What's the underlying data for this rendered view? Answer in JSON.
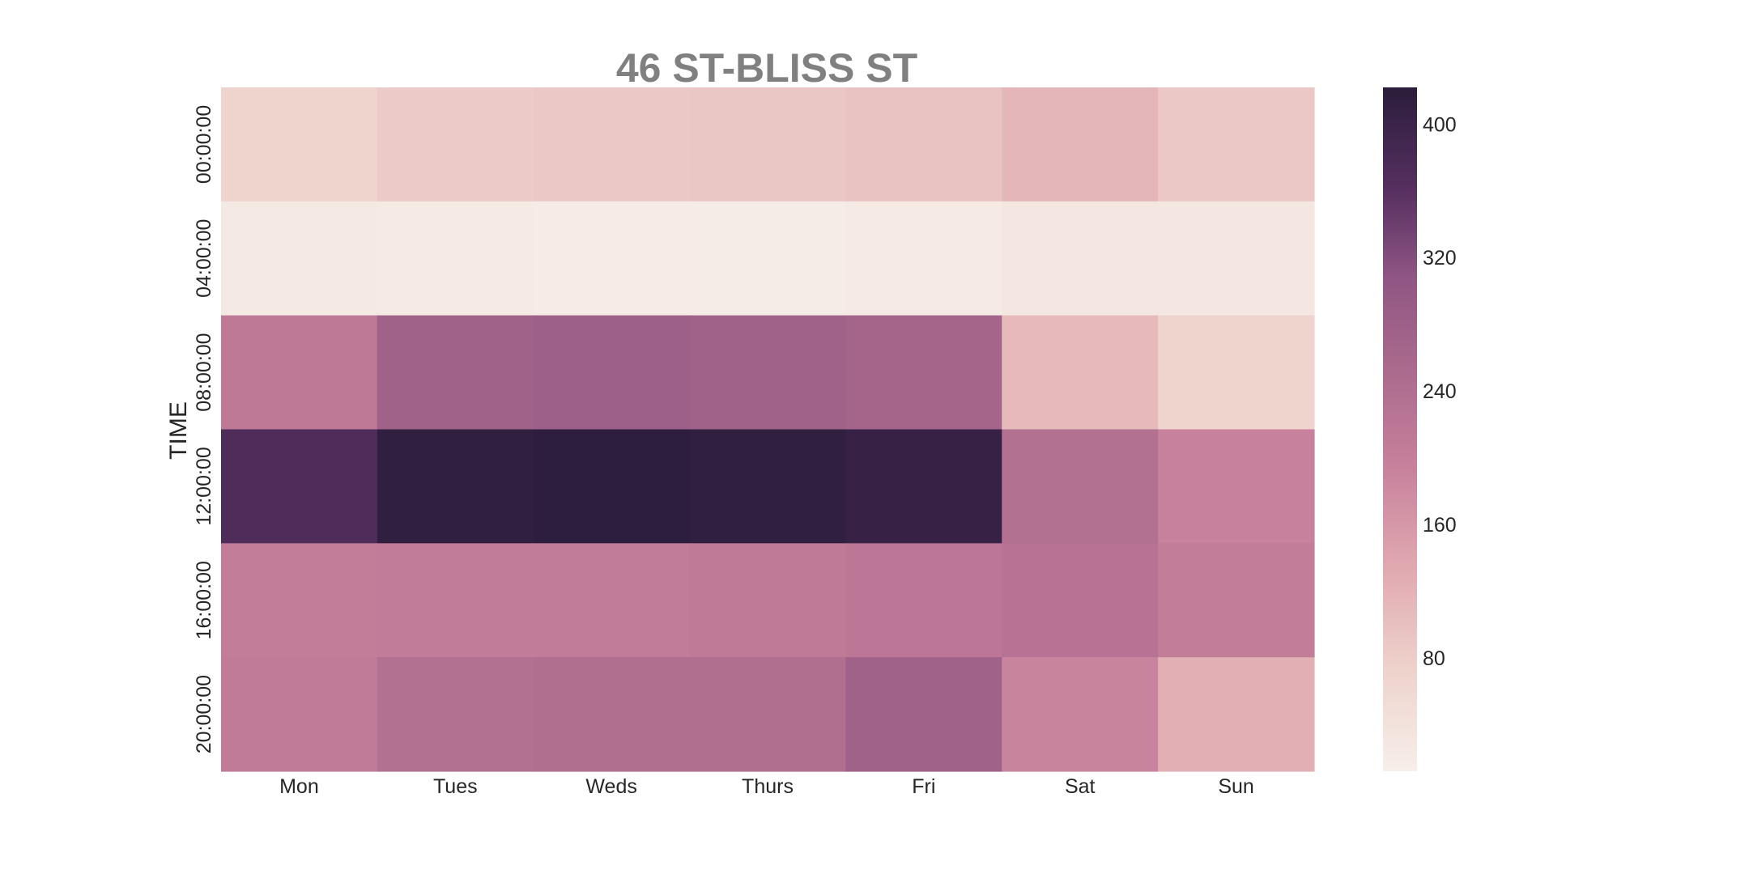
{
  "chart_data": {
    "type": "heatmap",
    "title": "46 ST-BLISS ST",
    "xlabel": "",
    "ylabel": "TIME",
    "x_categories": [
      "Mon",
      "Tues",
      "Weds",
      "Thurs",
      "Fri",
      "Sat",
      "Sun"
    ],
    "y_categories": [
      "00:00:00",
      "04:00:00",
      "08:00:00",
      "12:00:00",
      "16:00:00",
      "20:00:00"
    ],
    "values": [
      [
        70,
        85,
        88,
        90,
        95,
        115,
        88
      ],
      [
        25,
        22,
        20,
        18,
        22,
        30,
        32
      ],
      [
        215,
        275,
        280,
        275,
        265,
        110,
        70
      ],
      [
        370,
        415,
        418,
        415,
        405,
        235,
        195
      ],
      [
        205,
        208,
        208,
        212,
        220,
        230,
        205
      ],
      [
        210,
        235,
        240,
        240,
        275,
        190,
        125
      ]
    ],
    "colorbar": {
      "ticks": [
        80,
        160,
        240,
        320,
        400
      ],
      "range": [
        12,
        422
      ]
    },
    "colors": {
      "low": "#f7efea",
      "high": "#2b1d3b"
    },
    "grid": false
  }
}
